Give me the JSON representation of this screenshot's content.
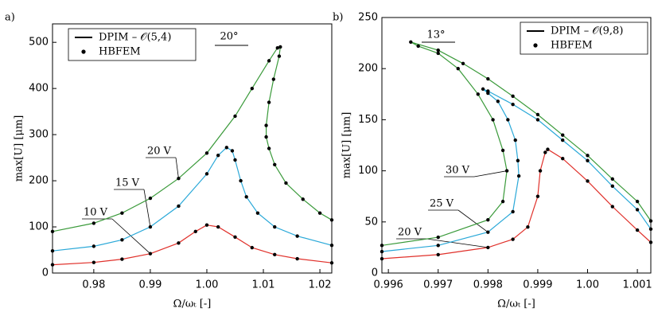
{
  "chart_data": [
    {
      "type": "line",
      "panel_label": "a)",
      "x_label": "Ω/ωₜ [-]",
      "y_label": "max[U] [μm]",
      "annotation": "20°",
      "legend_labels": [
        "DPIM – 𝒪(5,4)",
        "HBFEM"
      ],
      "legend_position": "upper left",
      "markers": true,
      "xlim": [
        0.9727,
        1.0221
      ],
      "ylim": [
        0,
        540
      ],
      "xticks": [
        0.98,
        0.99,
        {
          "value": 1,
          "label": "1.00"
        },
        1.01,
        1.02
      ],
      "yticks": [
        0,
        100,
        200,
        300,
        400,
        500
      ],
      "series": [
        {
          "name": "10 V",
          "color": "#e0302a",
          "x": [
            0.9727,
            0.98,
            0.985,
            0.99,
            0.995,
            0.998,
            1.0,
            1.002,
            1.005,
            1.008,
            1.012,
            1.016,
            1.0221
          ],
          "values": [
            18,
            23,
            30,
            42,
            65,
            90,
            104,
            100,
            78,
            55,
            40,
            31,
            22
          ]
        },
        {
          "name": "15 V",
          "color": "#29a8d8",
          "x": [
            0.9727,
            0.98,
            0.985,
            0.99,
            0.995,
            1.0,
            1.002,
            1.0035,
            1.0045,
            1.005,
            1.006,
            1.007,
            1.009,
            1.012,
            1.016,
            1.0221
          ],
          "values": [
            48,
            58,
            72,
            100,
            145,
            215,
            255,
            272,
            265,
            245,
            200,
            165,
            130,
            100,
            80,
            60
          ]
        },
        {
          "name": "20 V",
          "color": "#3a9a3a",
          "x": [
            0.9727,
            0.98,
            0.985,
            0.99,
            0.995,
            1.0,
            1.005,
            1.008,
            1.011,
            1.0125,
            1.013,
            1.0128,
            1.0118,
            1.011,
            1.0105,
            1.0105,
            1.011,
            1.012,
            1.014,
            1.017,
            1.02,
            1.0221
          ],
          "values": [
            90,
            108,
            130,
            162,
            205,
            260,
            340,
            400,
            460,
            488,
            490,
            470,
            420,
            370,
            320,
            295,
            270,
            235,
            195,
            160,
            130,
            115
          ]
        }
      ]
    },
    {
      "type": "line",
      "panel_label": "b)",
      "x_label": "Ω/ωₜ [-]",
      "y_label": "max[U] [μm]",
      "annotation": "13°",
      "legend_labels": [
        "DPIM – 𝒪(9,8)",
        "HBFEM"
      ],
      "legend_position": "upper right",
      "markers": true,
      "xlim": [
        0.99587,
        1.00127
      ],
      "ylim": [
        0,
        250
      ],
      "xticks": [
        0.996,
        0.997,
        0.998,
        0.999,
        {
          "value": 1,
          "label": "1.00"
        },
        1.001
      ],
      "yticks": [
        0,
        50,
        100,
        150,
        200,
        250
      ],
      "series": [
        {
          "name": "20 V",
          "color": "#e0302a",
          "x": [
            0.99587,
            0.997,
            0.998,
            0.9985,
            0.9988,
            0.999,
            0.99905,
            0.99915,
            0.9992,
            0.9995,
            1.0,
            1.0005,
            1.001,
            1.00127
          ],
          "values": [
            14,
            18,
            25,
            33,
            45,
            75,
            100,
            118,
            121,
            112,
            90,
            65,
            42,
            30
          ]
        },
        {
          "name": "25 V",
          "color": "#29a8d8",
          "x": [
            0.99587,
            0.997,
            0.998,
            0.9985,
            0.99862,
            0.9986,
            0.99855,
            0.9984,
            0.9982,
            0.998,
            0.9979,
            0.998,
            0.9985,
            0.999,
            0.9995,
            1.0,
            1.0005,
            1.001,
            1.00127
          ],
          "values": [
            21,
            27,
            40,
            60,
            95,
            110,
            130,
            150,
            168,
            176,
            180,
            178,
            165,
            150,
            130,
            110,
            85,
            62,
            43
          ]
        },
        {
          "name": "30 V",
          "color": "#3a9a3a",
          "x": [
            0.99587,
            0.997,
            0.998,
            0.9983,
            0.99838,
            0.9983,
            0.9981,
            0.9978,
            0.9974,
            0.997,
            0.9966,
            0.99645,
            0.997,
            0.9975,
            0.998,
            0.9985,
            0.999,
            0.9995,
            1.0,
            1.0005,
            1.001,
            1.00127
          ],
          "values": [
            27,
            35,
            52,
            70,
            100,
            120,
            150,
            175,
            200,
            215,
            222,
            226,
            218,
            205,
            190,
            173,
            155,
            135,
            115,
            92,
            70,
            51
          ]
        }
      ]
    }
  ]
}
